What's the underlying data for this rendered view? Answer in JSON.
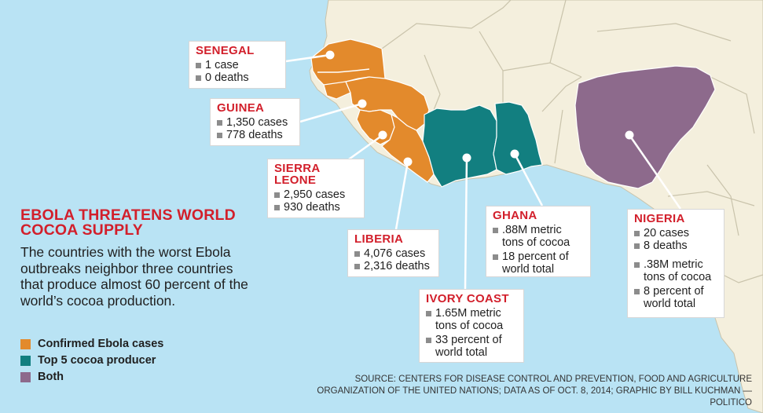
{
  "headline": "EBOLA THREATENS WORLD COCOA SUPPLY",
  "dek": "The countries with the worst Ebola outbreaks neighbor three countries that produce almost 60 percent of the world’s cocoa production.",
  "colors": {
    "ocean": "#b9e3f4",
    "land": "#f4efdd",
    "ebola": "#e38a2c",
    "cocoa": "#127f80",
    "both": "#8d6a8c",
    "title_red": "#d21f2b",
    "bullet_gray": "#8c8c8c"
  },
  "legend": [
    {
      "label": "Confirmed Ebola cases",
      "color": "#e38a2c"
    },
    {
      "label": "Top 5 cocoa producer",
      "color": "#127f80"
    },
    {
      "label": "Both",
      "color": "#8d6a8c"
    }
  ],
  "callouts": {
    "senegal": {
      "name": "SENEGAL",
      "cases": "1 case",
      "deaths": "0 deaths"
    },
    "guinea": {
      "name": "GUINEA",
      "cases": "1,350 cases",
      "deaths": "778 deaths"
    },
    "sierra_leone": {
      "name": "SIERRA LEONE",
      "cases": "2,950 cases",
      "deaths": "930 deaths"
    },
    "liberia": {
      "name": "LIBERIA",
      "cases": "4,076 cases",
      "deaths": "2,316 deaths"
    },
    "ivory_coast": {
      "name": "IVORY COAST",
      "production": "1.65M metric tons of cocoa",
      "share": "33 percent of world total"
    },
    "ghana": {
      "name": "GHANA",
      "production": ".88M metric tons of cocoa",
      "share": "18 percent of world total"
    },
    "nigeria": {
      "name": "NIGERIA",
      "cases": "20 cases",
      "deaths": "8 deaths",
      "production": ".38M metric tons of cocoa",
      "share": "8 percent of world total"
    }
  },
  "source": "SOURCE: CENTERS FOR DISEASE CONTROL AND PREVENTION, FOOD AND AGRICULTURE ORGANIZATION OF THE UNITED NATIONS; DATA AS OF OCT. 8, 2014; GRAPHIC BY BILL KUCHMAN — POLITICO"
}
